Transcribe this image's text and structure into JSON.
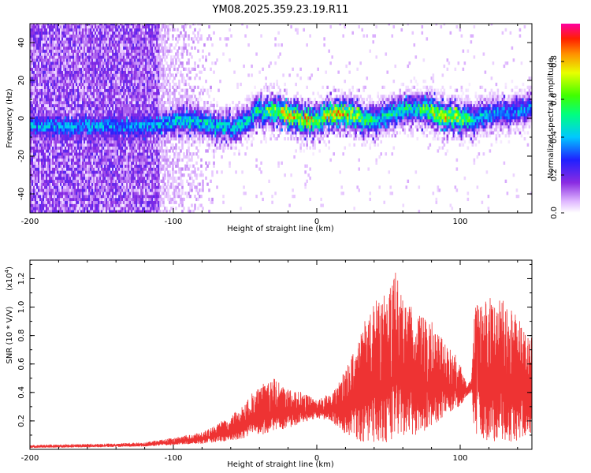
{
  "title": "YM08.2025.359.23.19.R11",
  "colors": {
    "snr_line": "#ee3333",
    "axis": "#000000",
    "background": "#ffffff"
  },
  "chart_data": [
    {
      "type": "heatmap",
      "panel": "spectrogram",
      "xlabel": "Height of straight line (km)",
      "ylabel": "Frequency (Hz)",
      "xlim": [
        -200,
        150
      ],
      "ylim": [
        -50,
        50
      ],
      "xticks": [
        "-200",
        "-100",
        "0",
        "100"
      ],
      "xtick_values": [
        -200,
        -100,
        0,
        100
      ],
      "yticks": [
        "-40",
        "-20",
        "0",
        "20",
        "40"
      ],
      "ytick_values": [
        -40,
        -20,
        0,
        20,
        40
      ],
      "colorbar": {
        "label": "Normalized spectral amplitude",
        "range": [
          0,
          1
        ],
        "ticks": [
          "0.0",
          "0.2",
          "0.4",
          "0.6",
          "0.8"
        ],
        "tick_values": [
          0.0,
          0.2,
          0.4,
          0.6,
          0.8
        ],
        "colormap": "rainbow (white-magenta-purple-blue-cyan-green-yellow-orange-red)"
      },
      "ridge_center_hz": [
        [
          -120,
          -5
        ],
        [
          -105,
          -3
        ],
        [
          -90,
          -2
        ],
        [
          -75,
          -4
        ],
        [
          -60,
          -6
        ],
        [
          -50,
          -3
        ],
        [
          -42,
          3
        ],
        [
          -35,
          3
        ],
        [
          -25,
          2
        ],
        [
          -15,
          0
        ],
        [
          -8,
          -2
        ],
        [
          0,
          -2
        ],
        [
          8,
          1
        ],
        [
          20,
          1
        ],
        [
          30,
          0
        ],
        [
          38,
          -2
        ],
        [
          45,
          -1
        ],
        [
          55,
          2
        ],
        [
          65,
          5
        ],
        [
          72,
          4
        ],
        [
          80,
          2
        ],
        [
          90,
          0
        ],
        [
          100,
          0
        ],
        [
          108,
          -2
        ],
        [
          115,
          0
        ],
        [
          125,
          2
        ],
        [
          135,
          3
        ],
        [
          150,
          4
        ]
      ],
      "ridge_peak_amplitude": [
        [
          -120,
          0.45
        ],
        [
          -90,
          0.55
        ],
        [
          -60,
          0.5
        ],
        [
          -40,
          0.6
        ],
        [
          -25,
          0.9
        ],
        [
          -15,
          0.95
        ],
        [
          -5,
          0.9
        ],
        [
          0,
          0.75
        ],
        [
          10,
          0.95
        ],
        [
          25,
          0.9
        ],
        [
          40,
          0.55
        ],
        [
          55,
          0.6
        ],
        [
          70,
          0.6
        ],
        [
          85,
          0.9
        ],
        [
          100,
          0.85
        ],
        [
          110,
          0.5
        ],
        [
          130,
          0.45
        ],
        [
          150,
          0.45
        ]
      ],
      "broadband_noise_region_km": [
        -200,
        -110
      ],
      "noise_fade_region_km": [
        -110,
        -70
      ]
    },
    {
      "type": "line",
      "panel": "snr",
      "xlabel": "Height of straight line (km)",
      "ylabel": "SNR (10 * V/V)",
      "y_scale_note_base": "(x10",
      "y_scale_note_exp": "4",
      "y_scale_note_end": ")",
      "xlim": [
        -200,
        150
      ],
      "ylim": [
        0,
        1.33
      ],
      "xticks": [
        "-200",
        "-100",
        "0",
        "100"
      ],
      "xtick_values": [
        -200,
        -100,
        0,
        100
      ],
      "yticks": [
        "0.2",
        "0.4",
        "0.6",
        "0.8",
        "1.0",
        "1.2"
      ],
      "ytick_values": [
        0.2,
        0.4,
        0.6,
        0.8,
        1.0,
        1.2
      ],
      "envelope_x_km": [
        -200,
        -150,
        -120,
        -100,
        -80,
        -70,
        -60,
        -50,
        -40,
        -30,
        -20,
        -10,
        0,
        10,
        20,
        30,
        40,
        50,
        55,
        60,
        70,
        80,
        90,
        100,
        105,
        108,
        110,
        120,
        130,
        140,
        150
      ],
      "envelope_upper": [
        0.03,
        0.04,
        0.05,
        0.08,
        0.12,
        0.17,
        0.24,
        0.32,
        0.45,
        0.5,
        0.42,
        0.4,
        0.35,
        0.38,
        0.55,
        0.8,
        1.05,
        1.1,
        1.25,
        1.05,
        0.95,
        0.9,
        0.75,
        0.6,
        0.45,
        0.5,
        1.0,
        1.05,
        1.05,
        0.95,
        0.8
      ],
      "envelope_lower": [
        0.01,
        0.015,
        0.02,
        0.03,
        0.04,
        0.05,
        0.06,
        0.08,
        0.1,
        0.12,
        0.15,
        0.18,
        0.22,
        0.2,
        0.1,
        0.05,
        0.05,
        0.05,
        0.1,
        0.1,
        0.1,
        0.15,
        0.25,
        0.3,
        0.38,
        0.4,
        0.1,
        0.05,
        0.05,
        0.05,
        0.1
      ]
    }
  ]
}
